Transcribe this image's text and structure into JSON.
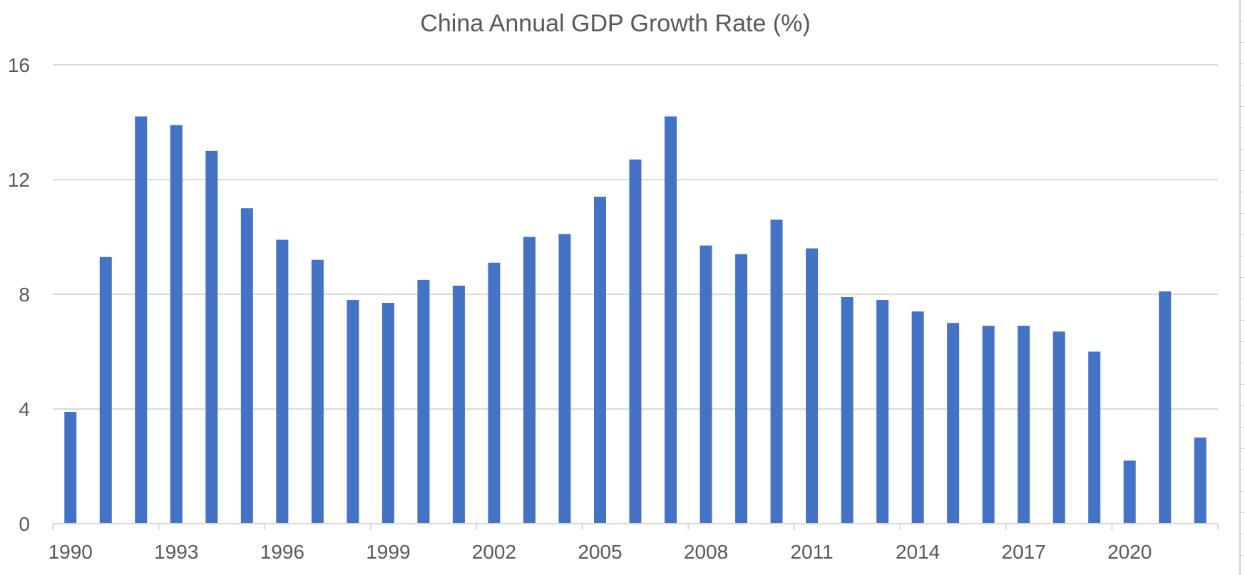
{
  "chart_data": {
    "type": "bar",
    "title": "China Annual GDP Growth Rate (%)",
    "xlabel": "",
    "ylabel": "",
    "ylim": [
      0,
      16
    ],
    "yticks": [
      0,
      4,
      8,
      12,
      16
    ],
    "grid": true,
    "color": "#4472C4",
    "categories": [
      "1990",
      "1991",
      "1992",
      "1993",
      "1994",
      "1995",
      "1996",
      "1997",
      "1998",
      "1999",
      "2000",
      "2001",
      "2002",
      "2003",
      "2004",
      "2005",
      "2006",
      "2007",
      "2008",
      "2009",
      "2010",
      "2011",
      "2012",
      "2013",
      "2014",
      "2015",
      "2016",
      "2017",
      "2018",
      "2019",
      "2020",
      "2021",
      "2022"
    ],
    "values": [
      3.9,
      9.3,
      14.2,
      13.9,
      13.0,
      11.0,
      9.9,
      9.2,
      7.8,
      7.7,
      8.5,
      8.3,
      9.1,
      10.0,
      10.1,
      11.4,
      12.7,
      14.2,
      9.7,
      9.4,
      10.6,
      9.6,
      7.9,
      7.8,
      7.4,
      7.0,
      6.9,
      6.9,
      6.7,
      6.0,
      2.2,
      8.1,
      3.0
    ],
    "xtick_labels": [
      "1990",
      "1993",
      "1996",
      "1999",
      "2002",
      "2005",
      "2008",
      "2011",
      "2014",
      "2017",
      "2020"
    ]
  }
}
